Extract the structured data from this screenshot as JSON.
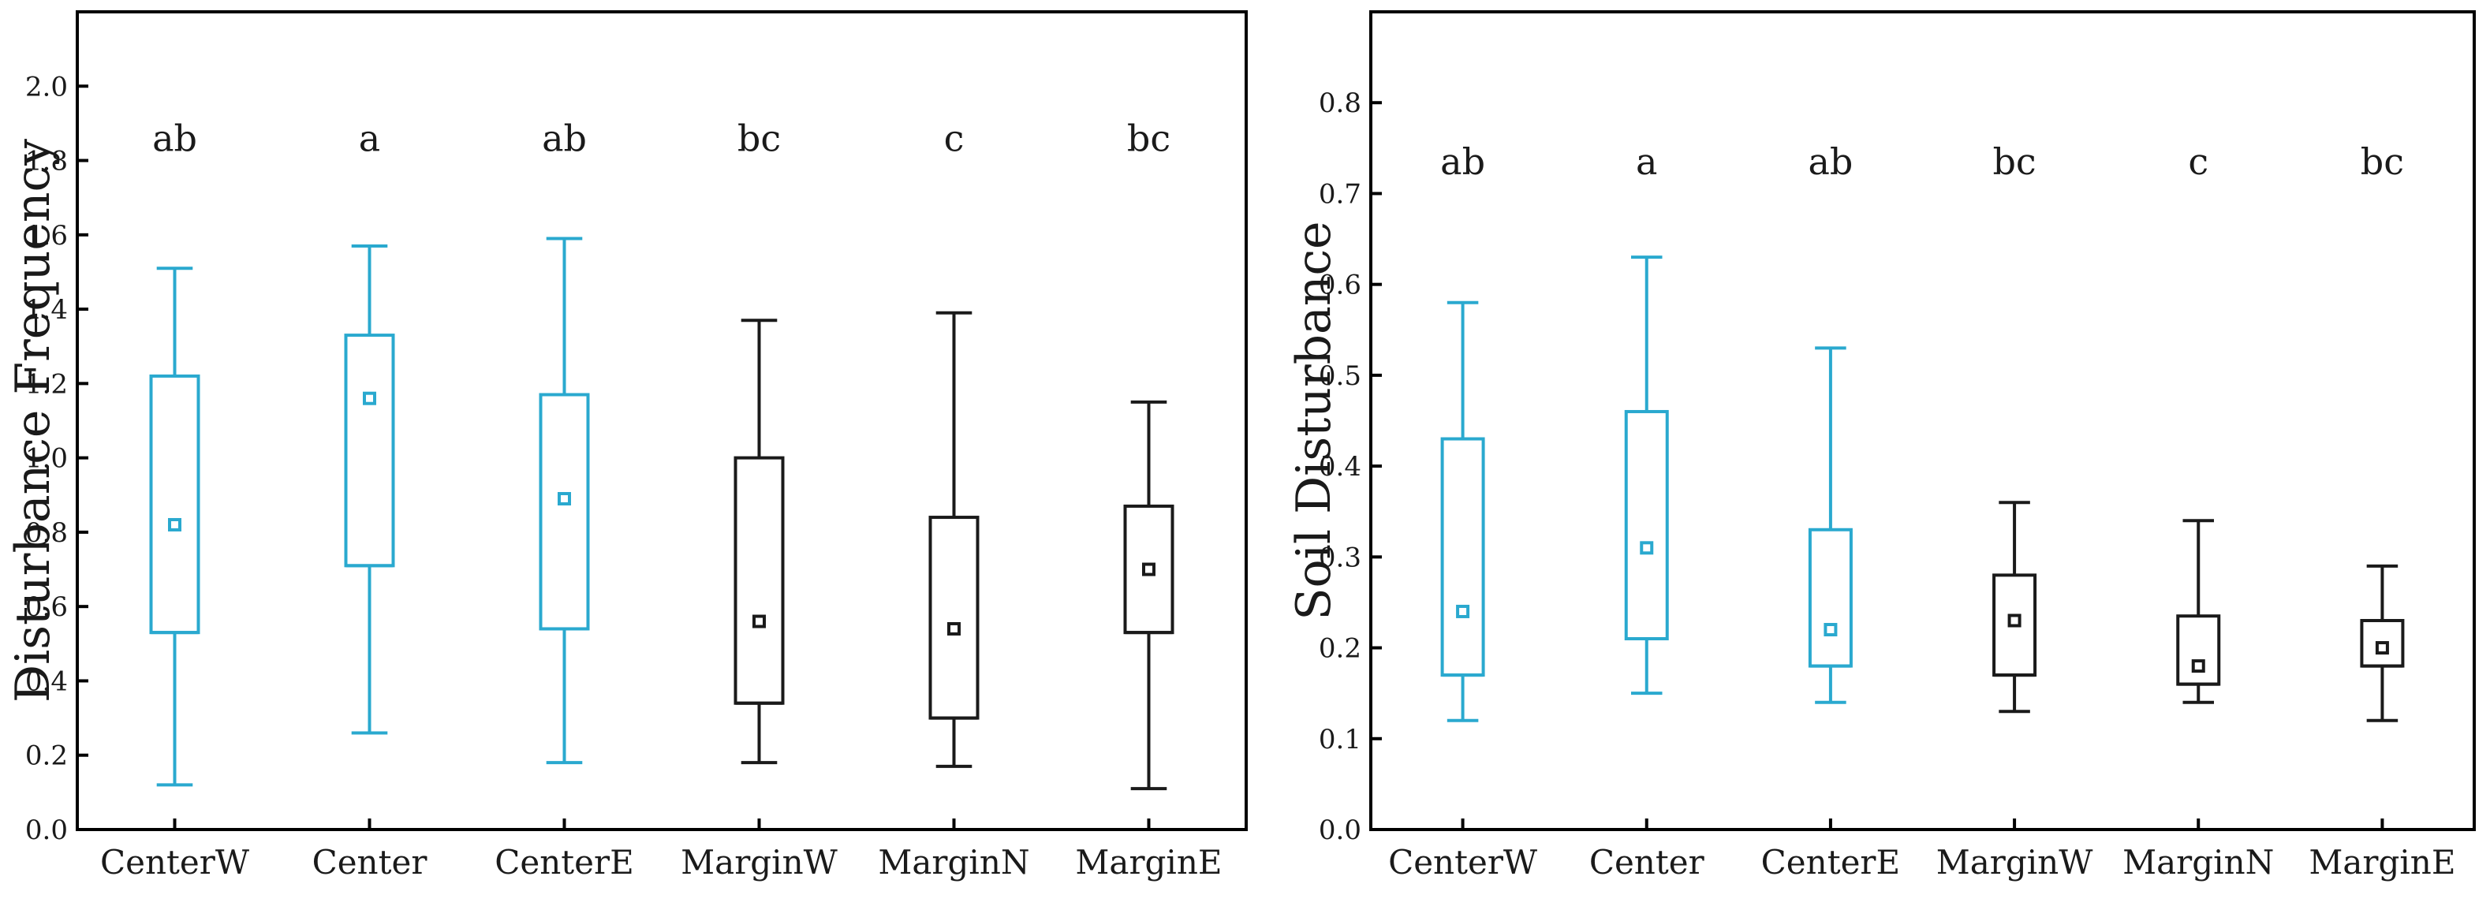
{
  "colors": {
    "center": "#2aa9cf",
    "margin": "#1a1a1a"
  },
  "chart_data": [
    {
      "type": "box",
      "title": "",
      "xlabel": "",
      "ylabel": "Disturbance Frequency",
      "ylim": [
        0.0,
        2.2
      ],
      "yticks": [
        0.0,
        0.2,
        0.4,
        0.6,
        0.8,
        1.0,
        1.2,
        1.4,
        1.6,
        1.8,
        2.0
      ],
      "ytick_labels": [
        "0.0",
        "0.2",
        "0.4",
        "0.6",
        "0.8",
        "1.0",
        "1.2",
        "1.4",
        "1.6",
        "1.8",
        "2.0"
      ],
      "categories": [
        "CenterW",
        "Center",
        "CenterE",
        "MarginW",
        "MarginN",
        "MarginE"
      ],
      "groups": [
        "center",
        "center",
        "center",
        "margin",
        "margin",
        "margin"
      ],
      "letters": [
        "ab",
        "a",
        "ab",
        "bc",
        "c",
        "bc"
      ],
      "letter_level": 1.86,
      "boxes": [
        {
          "whisker_low": 0.12,
          "q1": 0.53,
          "median": 0.53,
          "q3": 1.22,
          "whisker_high": 1.51,
          "mean": 0.82
        },
        {
          "whisker_low": 0.26,
          "q1": 0.71,
          "median": 0.71,
          "q3": 1.33,
          "whisker_high": 1.57,
          "mean": 1.16
        },
        {
          "whisker_low": 0.18,
          "q1": 0.54,
          "median": 0.54,
          "q3": 1.17,
          "whisker_high": 1.59,
          "mean": 0.89
        },
        {
          "whisker_low": 0.18,
          "q1": 0.34,
          "median": 0.34,
          "q3": 1.0,
          "whisker_high": 1.37,
          "mean": 0.56
        },
        {
          "whisker_low": 0.17,
          "q1": 0.3,
          "median": 0.3,
          "q3": 0.84,
          "whisker_high": 1.39,
          "mean": 0.54
        },
        {
          "whisker_low": 0.11,
          "q1": 0.53,
          "median": 0.53,
          "q3": 0.87,
          "whisker_high": 1.15,
          "mean": 0.7
        }
      ]
    },
    {
      "type": "box",
      "title": "",
      "xlabel": "",
      "ylabel": "Soil Disturbance",
      "ylim": [
        0.0,
        0.9
      ],
      "yticks": [
        0.0,
        0.1,
        0.2,
        0.3,
        0.4,
        0.5,
        0.6,
        0.7,
        0.8
      ],
      "ytick_labels": [
        "0.0",
        "0.1",
        "0.2",
        "0.3",
        "0.4",
        "0.5",
        "0.6",
        "0.7",
        "0.8"
      ],
      "categories": [
        "CenterW",
        "Center",
        "CenterE",
        "MarginW",
        "MarginN",
        "MarginE"
      ],
      "groups": [
        "center",
        "center",
        "center",
        "margin",
        "margin",
        "margin"
      ],
      "letters": [
        "ab",
        "a",
        "ab",
        "bc",
        "c",
        "bc"
      ],
      "letter_level": 0.735,
      "boxes": [
        {
          "whisker_low": 0.12,
          "q1": 0.17,
          "median": 0.17,
          "q3": 0.43,
          "whisker_high": 0.58,
          "mean": 0.24
        },
        {
          "whisker_low": 0.15,
          "q1": 0.21,
          "median": 0.21,
          "q3": 0.46,
          "whisker_high": 0.63,
          "mean": 0.31
        },
        {
          "whisker_low": 0.14,
          "q1": 0.18,
          "median": 0.18,
          "q3": 0.33,
          "whisker_high": 0.53,
          "mean": 0.22
        },
        {
          "whisker_low": 0.13,
          "q1": 0.17,
          "median": 0.17,
          "q3": 0.28,
          "whisker_high": 0.36,
          "mean": 0.23
        },
        {
          "whisker_low": 0.14,
          "q1": 0.16,
          "median": 0.16,
          "q3": 0.235,
          "whisker_high": 0.34,
          "mean": 0.18
        },
        {
          "whisker_low": 0.12,
          "q1": 0.18,
          "median": 0.18,
          "q3": 0.23,
          "whisker_high": 0.29,
          "mean": 0.2
        }
      ]
    }
  ]
}
